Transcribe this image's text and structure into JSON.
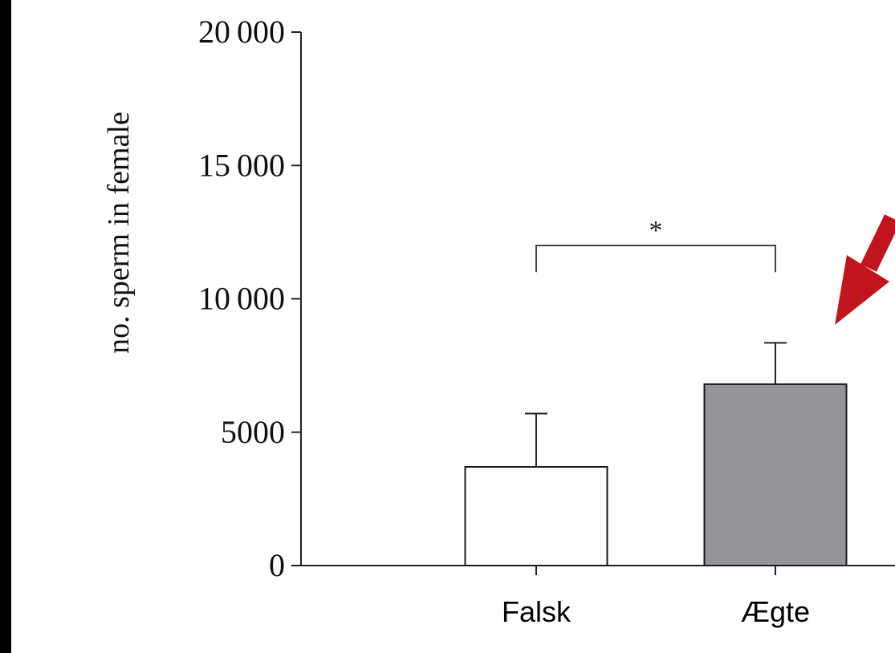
{
  "chart_data": {
    "type": "bar",
    "categories": [
      "Falsk",
      "Ægte"
    ],
    "values": [
      3700,
      6800
    ],
    "errors": [
      2000,
      1550
    ],
    "bar_colors": [
      "#ffffff",
      "#939598"
    ],
    "bar_edge_color": "#1a1a1a",
    "ylabel": "no. sperm in female",
    "xlabel": "",
    "ylim": [
      0,
      20000
    ],
    "yticks": [
      0,
      5000,
      10000,
      15000,
      20000
    ],
    "ytick_labels": [
      "0",
      "5000",
      "10 000",
      "15 000",
      "20 000"
    ],
    "grid": false,
    "significance": {
      "between": [
        "Falsk",
        "Ægte"
      ],
      "label": "*",
      "level": 12000,
      "drop_to": 11000
    },
    "highlight_arrow": {
      "color": "#c0151c",
      "points_to": "Ægte"
    }
  }
}
